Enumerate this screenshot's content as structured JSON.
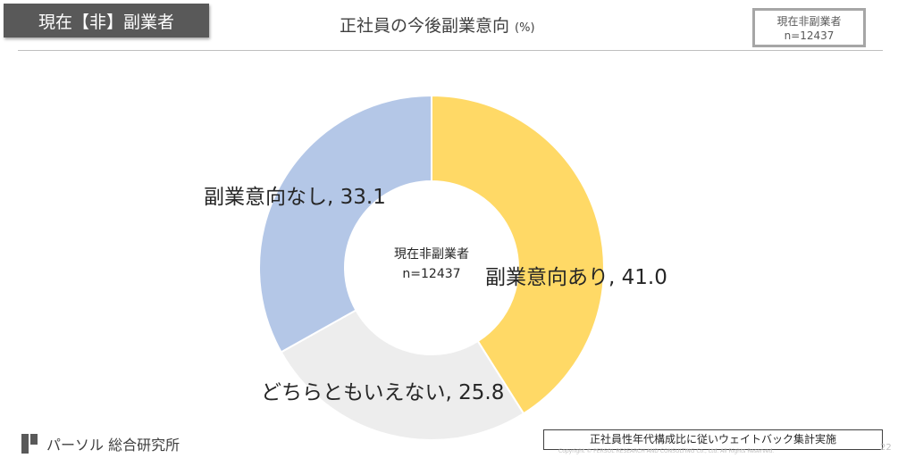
{
  "header": {
    "tag_label": "現在【非】副業者",
    "title": "正社員の今後副業意向",
    "title_unit": "(%)",
    "sample_box": {
      "line1": "現在非副業者",
      "line2": "n=12437"
    }
  },
  "chart_data": {
    "type": "pie",
    "variant": "donut",
    "center_label": {
      "line1": "現在非副業者",
      "line2": "n=12437"
    },
    "slices": [
      {
        "label": "副業意向あり",
        "value": 41.0,
        "display": "41.0",
        "color": "#FFD966"
      },
      {
        "label": "どちらともいえない",
        "value": 25.8,
        "display": "25.8",
        "color": "#EDEDED"
      },
      {
        "label": "副業意向なし",
        "value": 33.1,
        "display": "33.1",
        "color": "#B4C7E7"
      }
    ]
  },
  "footer": {
    "logo_text": "パーソル 総合研究所",
    "note": "正社員性年代構成比に従いウェイトバック集計実施",
    "copyright": "Copyright © PERSOL RESEARCH AND CONSULTING Co., Ltd. All Rights Reserved.",
    "page_number": "22"
  }
}
